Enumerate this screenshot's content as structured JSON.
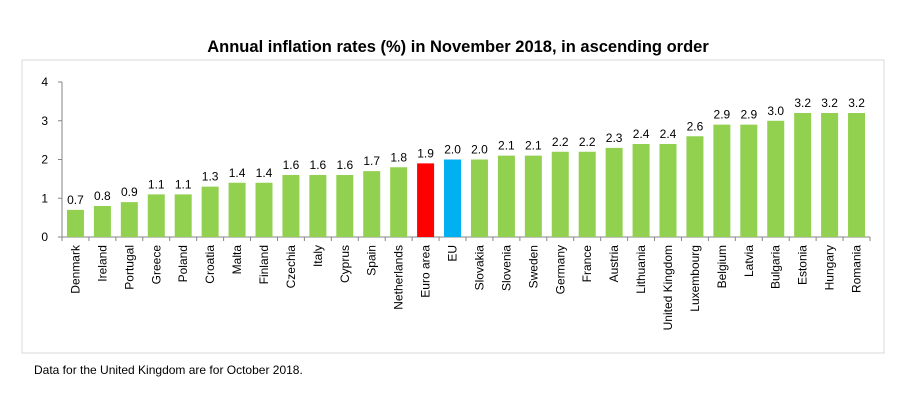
{
  "chart_data": {
    "type": "bar",
    "title": "Annual inflation rates (%) in November 2018, in ascending order",
    "categories": [
      "Denmark",
      "Ireland",
      "Portugal",
      "Greece",
      "Poland",
      "Croatia",
      "Malta",
      "Finland",
      "Czechia",
      "Italy",
      "Cyprus",
      "Spain",
      "Netherlands",
      "Euro area",
      "EU",
      "Slovakia",
      "Slovenia",
      "Sweden",
      "Germany",
      "France",
      "Austria",
      "Lithuania",
      "United Kingdom",
      "Luxembourg",
      "Belgium",
      "Latvia",
      "Bulgaria",
      "Estonia",
      "Hungary",
      "Romania"
    ],
    "values": [
      0.7,
      0.8,
      0.9,
      1.1,
      1.1,
      1.3,
      1.4,
      1.4,
      1.6,
      1.6,
      1.6,
      1.7,
      1.8,
      1.9,
      2.0,
      2.0,
      2.1,
      2.1,
      2.2,
      2.2,
      2.3,
      2.4,
      2.4,
      2.6,
      2.9,
      2.9,
      3.0,
      3.2,
      3.2,
      3.2
    ],
    "data_labels": [
      "0.7",
      "0.8",
      "0.9",
      "1.1",
      "1.1",
      "1.3",
      "1.4",
      "1.4",
      "1.6",
      "1.6",
      "1.6",
      "1.7",
      "1.8",
      "1.9",
      "2.0",
      "2.0",
      "2.1",
      "2.1",
      "2.2",
      "2.2",
      "2.3",
      "2.4",
      "2.4",
      "2.6",
      "2.9",
      "2.9",
      "3.0",
      "3.2",
      "3.2",
      "3.2"
    ],
    "ylim": [
      0,
      4
    ],
    "yticks": [
      "0",
      "1",
      "2",
      "3",
      "4"
    ],
    "grid": false,
    "legend": "none",
    "colors": {
      "default": "#92d050",
      "highlight": {
        "Euro area": "#ff0000",
        "EU": "#00b0f0"
      }
    }
  },
  "footnote": "Data for the United Kingdom are for October 2018."
}
